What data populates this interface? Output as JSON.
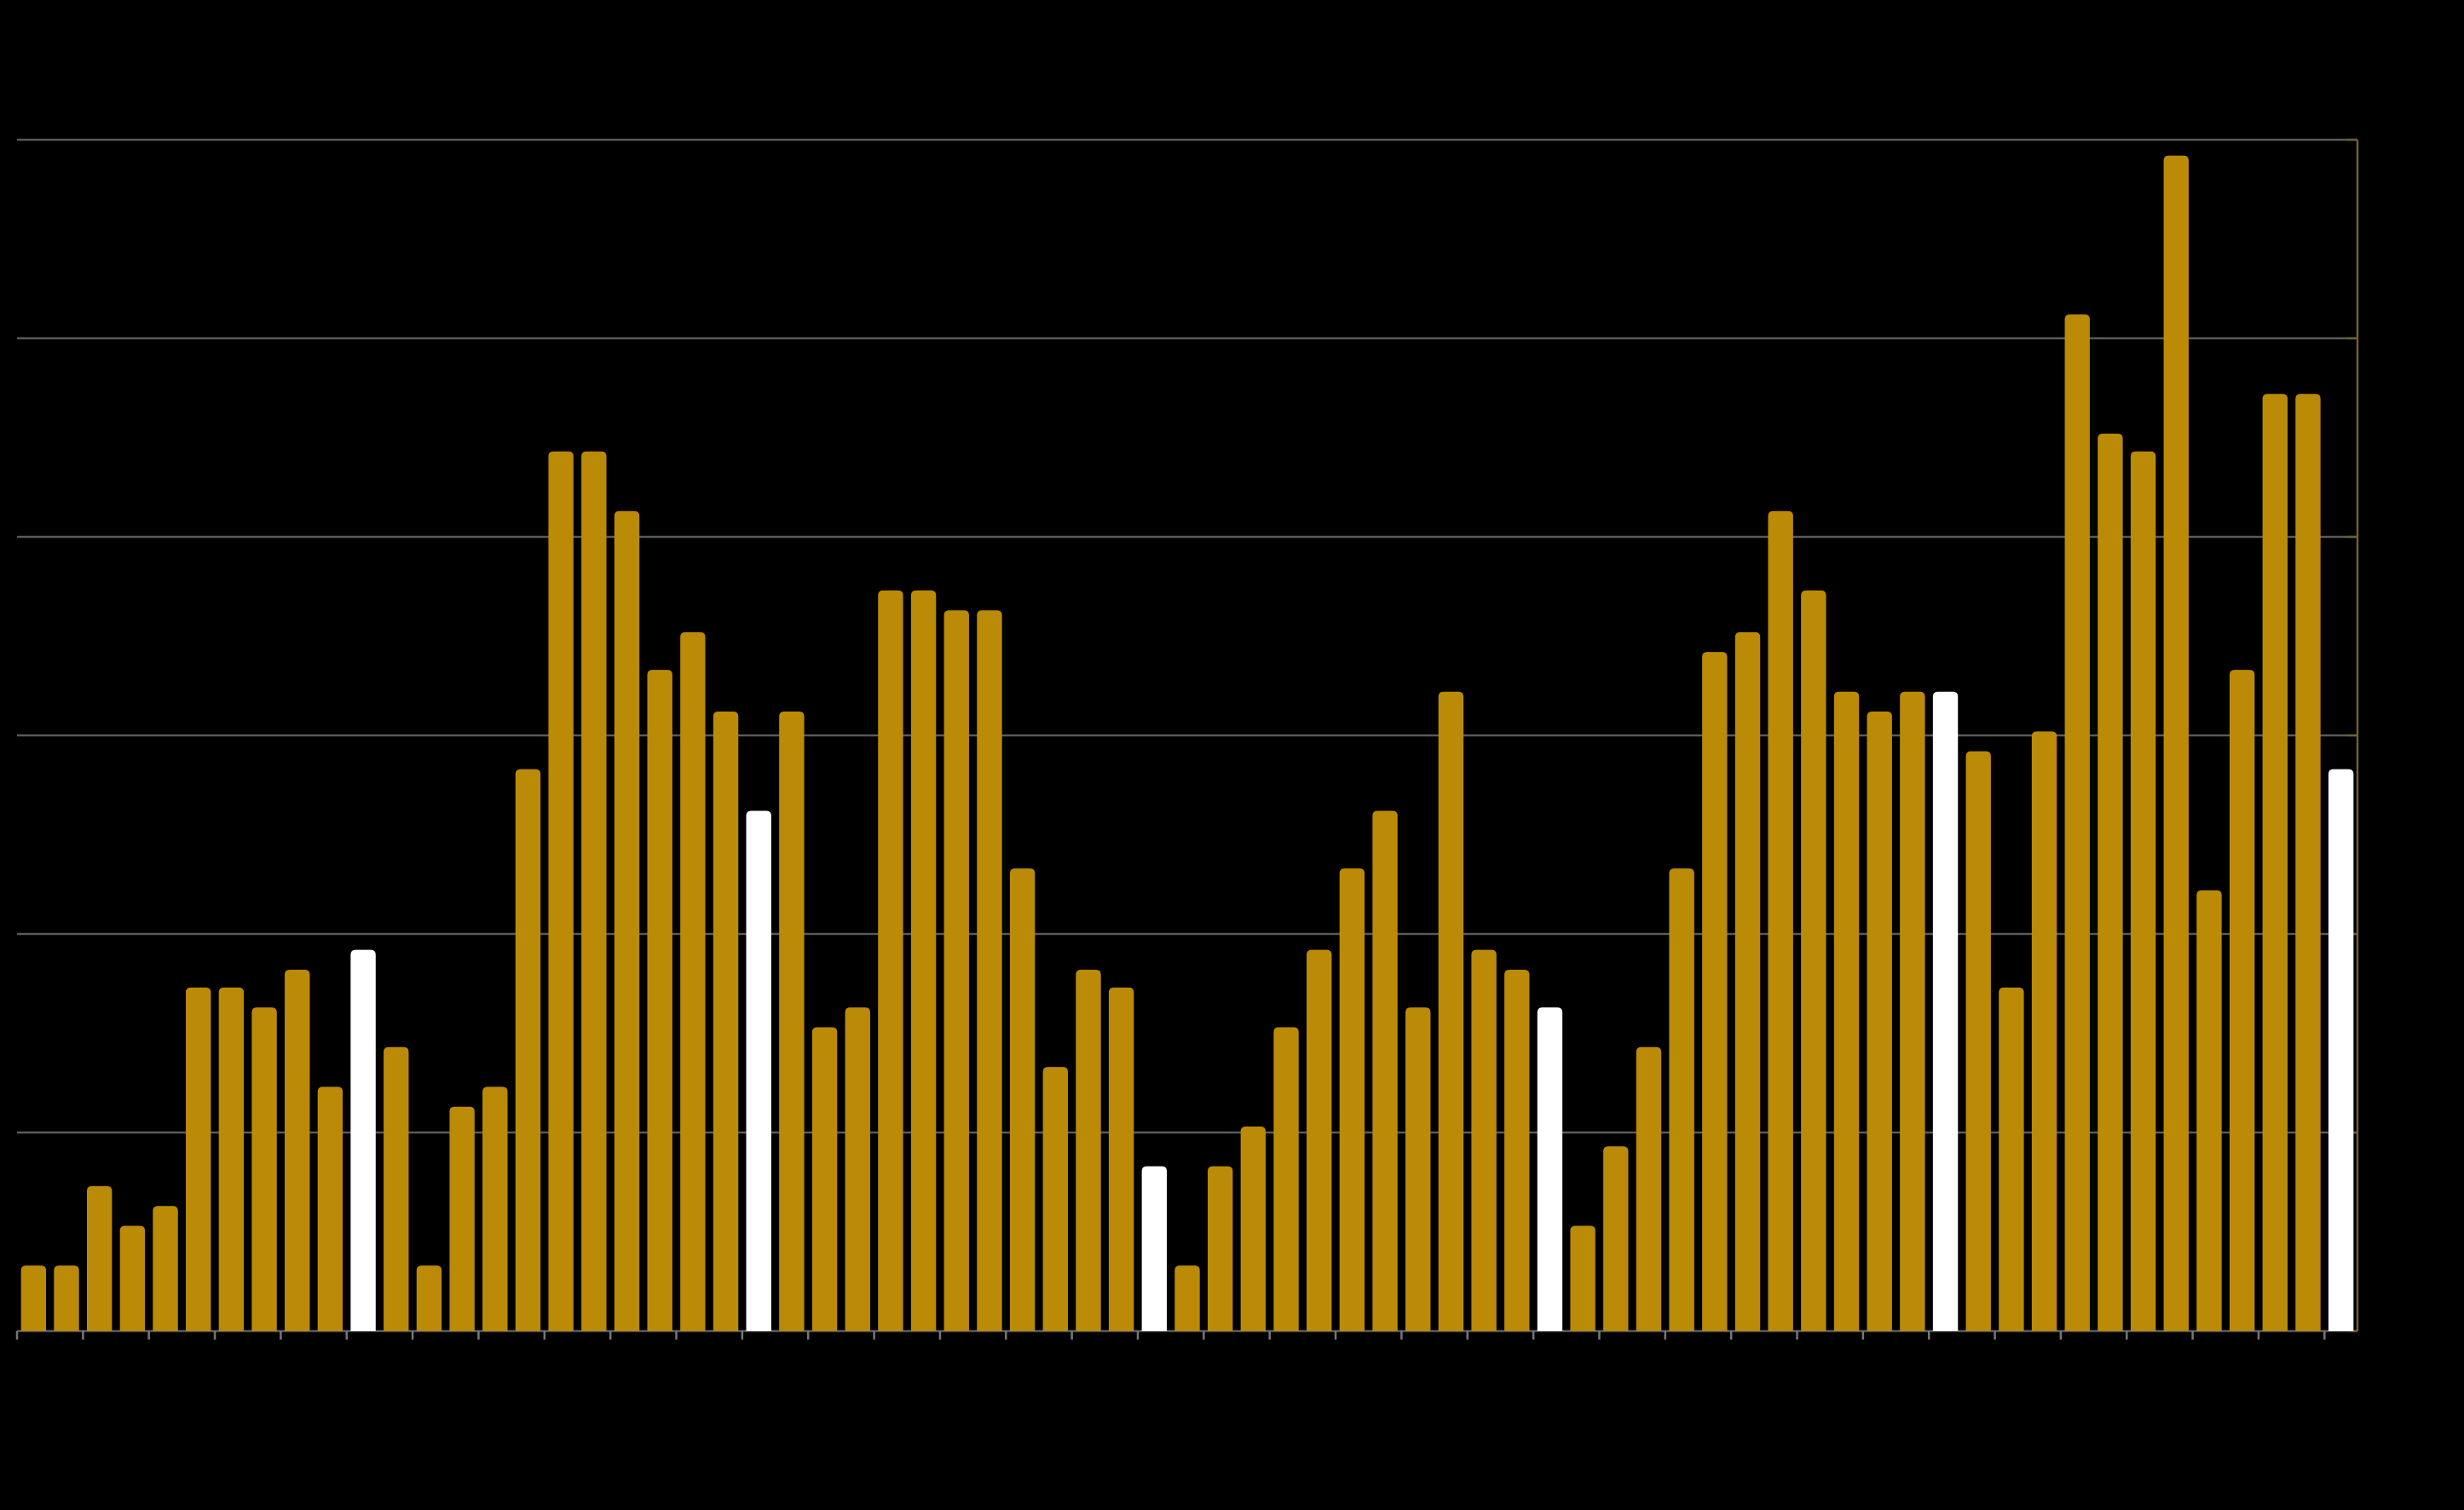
{
  "chart_data": {
    "type": "bar",
    "categories": [
      null,
      null,
      null,
      null,
      null,
      null,
      null,
      null,
      null,
      null,
      null,
      null,
      null,
      null,
      null,
      null,
      null,
      null,
      null,
      null,
      null,
      null,
      null,
      null,
      null,
      null,
      null,
      null,
      null,
      null,
      null,
      null,
      null,
      null,
      null,
      null,
      null,
      null,
      null,
      null,
      null,
      null,
      null,
      null,
      null,
      null,
      null,
      null,
      null,
      null,
      null,
      null,
      null,
      null,
      null,
      null,
      null,
      null,
      null,
      null,
      null,
      null,
      null,
      null,
      null,
      null,
      null,
      null,
      null,
      null,
      null
    ],
    "values": [
      3.3,
      3.3,
      7.3,
      5.3,
      6.3,
      17.3,
      17.3,
      16.3,
      18.2,
      12.3,
      19.2,
      14.3,
      3.3,
      11.3,
      12.3,
      28.3,
      44.3,
      44.3,
      41.3,
      33.3,
      35.2,
      31.2,
      26.2,
      31.2,
      15.3,
      16.3,
      37.3,
      37.3,
      36.3,
      36.3,
      23.3,
      13.3,
      18.2,
      17.3,
      8.3,
      3.3,
      8.3,
      10.3,
      15.3,
      19.2,
      23.3,
      26.2,
      16.3,
      32.2,
      19.2,
      18.2,
      16.3,
      5.3,
      9.3,
      14.3,
      23.3,
      34.2,
      35.2,
      41.3,
      37.3,
      32.2,
      31.2,
      32.2,
      32.2,
      29.2,
      17.3,
      30.2,
      51.2,
      45.2,
      44.3,
      59.2,
      22.2,
      33.3,
      47.2,
      47.2,
      28.3
    ],
    "colors": [
      "#bb8a06",
      "#bb8a06",
      "#bb8a06",
      "#bb8a06",
      "#bb8a06",
      "#bb8a06",
      "#bb8a06",
      "#bb8a06",
      "#bb8a06",
      "#bb8a06",
      "#ffffff",
      "#bb8a06",
      "#bb8a06",
      "#bb8a06",
      "#bb8a06",
      "#bb8a06",
      "#bb8a06",
      "#bb8a06",
      "#bb8a06",
      "#bb8a06",
      "#bb8a06",
      "#bb8a06",
      "#ffffff",
      "#bb8a06",
      "#bb8a06",
      "#bb8a06",
      "#bb8a06",
      "#bb8a06",
      "#bb8a06",
      "#bb8a06",
      "#bb8a06",
      "#bb8a06",
      "#bb8a06",
      "#bb8a06",
      "#ffffff",
      "#bb8a06",
      "#bb8a06",
      "#bb8a06",
      "#bb8a06",
      "#bb8a06",
      "#bb8a06",
      "#bb8a06",
      "#bb8a06",
      "#bb8a06",
      "#bb8a06",
      "#bb8a06",
      "#ffffff",
      "#bb8a06",
      "#bb8a06",
      "#bb8a06",
      "#bb8a06",
      "#bb8a06",
      "#bb8a06",
      "#bb8a06",
      "#bb8a06",
      "#bb8a06",
      "#bb8a06",
      "#bb8a06",
      "#ffffff",
      "#bb8a06",
      "#bb8a06",
      "#bb8a06",
      "#bb8a06",
      "#bb8a06",
      "#bb8a06",
      "#bb8a06",
      "#bb8a06",
      "#bb8a06",
      "#bb8a06",
      "#bb8a06",
      "#ffffff"
    ],
    "ylim": [
      0,
      60
    ],
    "yticks": [
      0,
      10,
      20,
      30,
      40,
      50,
      60
    ],
    "grid": true
  }
}
